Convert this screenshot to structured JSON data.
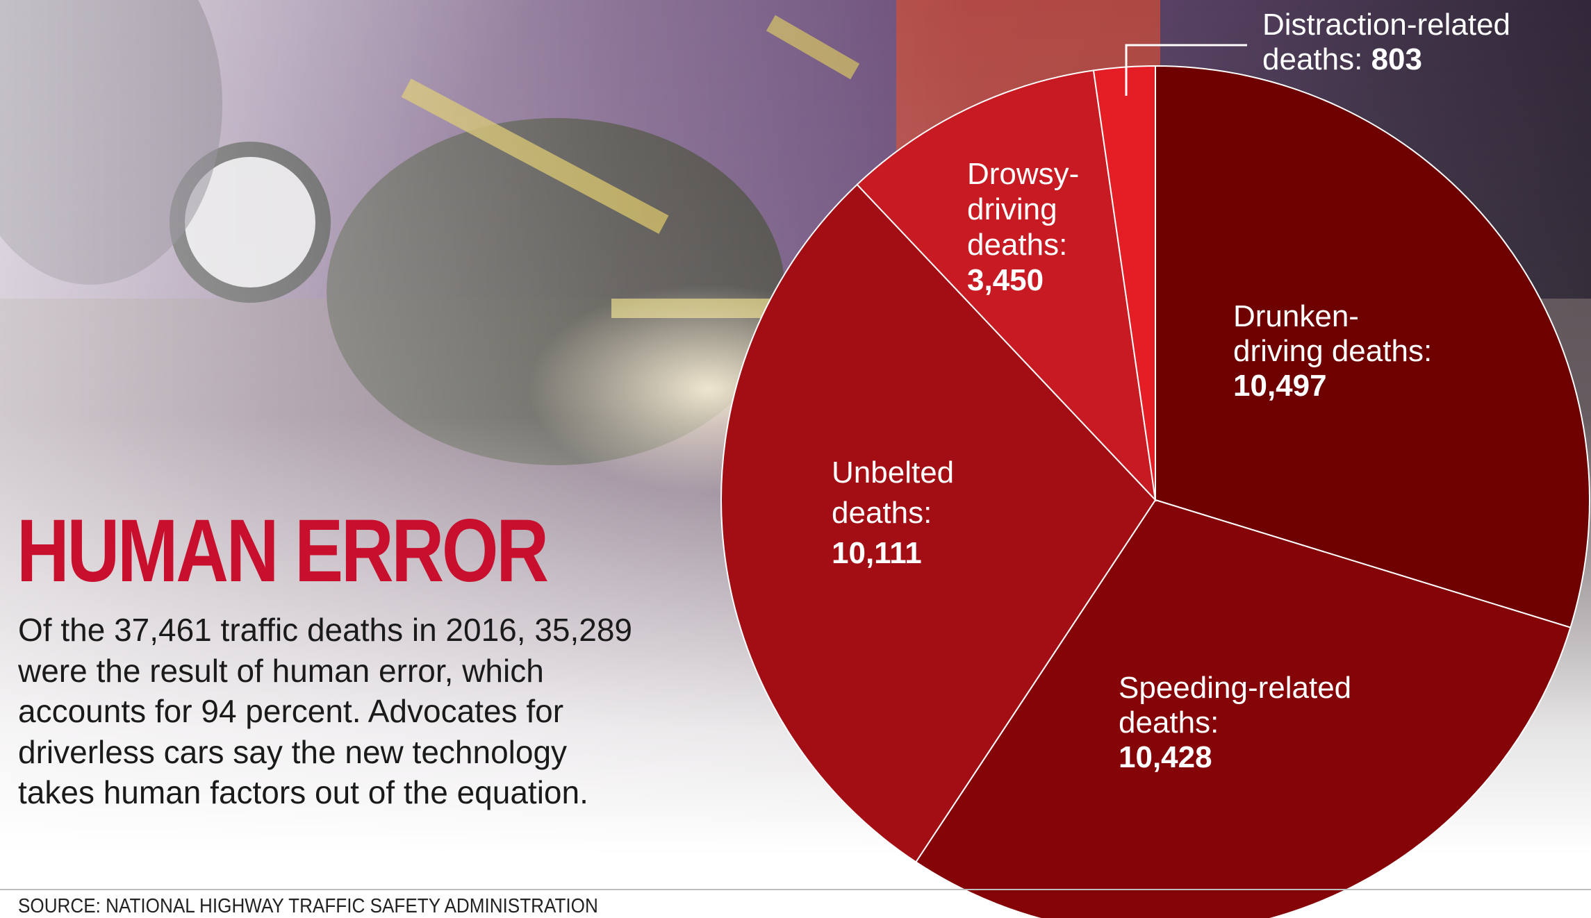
{
  "title": "HUMAN ERROR",
  "description": "Of the 37,461 traffic deaths in 2016, 35,289 were the result of human error, which accounts for 94 percent. Advocates for driverless cars say the new technology takes human factors out of the equation.",
  "source": "SOURCE: NATIONAL HIGHWAY TRAFFIC SAFETY ADMINISTRATION",
  "colors": {
    "title": "#c8102e",
    "drunken": "#6e0000",
    "speeding": "#840408",
    "unbelted": "#a30e14",
    "drowsy": "#c81a22",
    "distraction": "#e51d24"
  },
  "chart_data": {
    "type": "pie",
    "slices": [
      {
        "label_lines": [
          "Drunken-",
          "driving deaths:"
        ],
        "value_text": "10,497",
        "value": 10497,
        "color": "#6e0000"
      },
      {
        "label_lines": [
          "Speeding-related",
          "deaths:"
        ],
        "value_text": "10,428",
        "value": 10428,
        "color": "#840408"
      },
      {
        "label_lines": [
          "Unbelted",
          "deaths:"
        ],
        "value_text": "10,111",
        "value": 10111,
        "color": "#a30e14"
      },
      {
        "label_lines": [
          "Drowsy-",
          "driving",
          "deaths:"
        ],
        "value_text": "3,450",
        "value": 3450,
        "color": "#c81a22"
      },
      {
        "label_lines": [
          "Distraction-related",
          "deaths:"
        ],
        "value_text": "803",
        "value": 803,
        "color": "#e51d24"
      }
    ]
  }
}
